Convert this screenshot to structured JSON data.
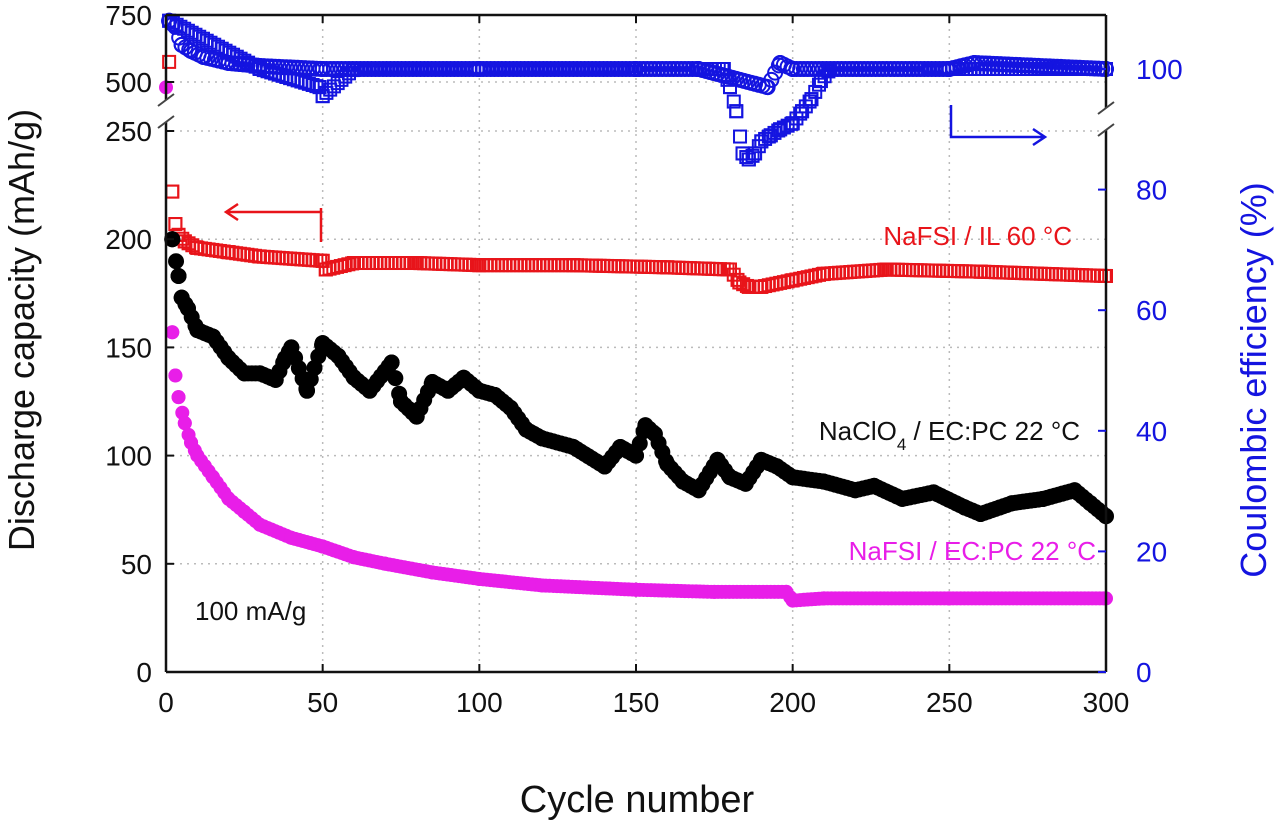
{
  "chart_data": {
    "type": "scatter",
    "xlabel": "Cycle number",
    "ylabel_left": "Discharge capacity (mAh/g)",
    "ylabel_right": "Coulombic efficiency (%)",
    "xlim": [
      0,
      300
    ],
    "ylim_left_lower": [
      0,
      250
    ],
    "ylim_left_upper": [
      250,
      750
    ],
    "ylim_right": [
      0,
      110
    ],
    "x_ticks": [
      "0",
      "50",
      "100",
      "150",
      "200",
      "250",
      "300"
    ],
    "y_left_ticks": [
      "0",
      "50",
      "100",
      "150",
      "200",
      "250",
      "500",
      "750"
    ],
    "y_right_ticks": [
      "0",
      "20",
      "40",
      "60",
      "80",
      "100"
    ],
    "grid": true,
    "annotations": {
      "rate": "100 mA/g",
      "label_il": "NaFSI / IL 60 °C",
      "label_clo4_main": "NaClO",
      "label_clo4_sub": "4",
      "label_clo4_rest": " / EC:PC 22 °C",
      "label_fsi_ecpc": "NaFSI / EC:PC 22 °C"
    },
    "colors": {
      "il": "#e8141a",
      "clo4": "#000000",
      "fsi": "#e81ee8",
      "ce": "#1414e0"
    },
    "series": [
      {
        "name": "NaFSI / IL 60 °C discharge",
        "axis": "left",
        "marker": "open-square",
        "color": "#e8141a",
        "points": [
          [
            1,
            575
          ],
          [
            2,
            222
          ],
          [
            3,
            207
          ],
          [
            4,
            202
          ],
          [
            6,
            199
          ],
          [
            10,
            196
          ],
          [
            20,
            194
          ],
          [
            30,
            192
          ],
          [
            50,
            190
          ],
          [
            51,
            186
          ],
          [
            60,
            189
          ],
          [
            80,
            189
          ],
          [
            100,
            188
          ],
          [
            130,
            188
          ],
          [
            160,
            187
          ],
          [
            180,
            186
          ],
          [
            183,
            180
          ],
          [
            186,
            178
          ],
          [
            190,
            178
          ],
          [
            200,
            181
          ],
          [
            210,
            184
          ],
          [
            230,
            186
          ],
          [
            260,
            185
          ],
          [
            300,
            183
          ]
        ]
      },
      {
        "name": "NaClO4 / EC:PC 22 °C discharge",
        "axis": "left",
        "marker": "filled-circle",
        "color": "#000000",
        "points": [
          [
            2,
            200
          ],
          [
            4,
            183
          ],
          [
            5,
            173
          ],
          [
            7,
            168
          ],
          [
            10,
            158
          ],
          [
            15,
            155
          ],
          [
            20,
            145
          ],
          [
            25,
            138
          ],
          [
            30,
            138
          ],
          [
            35,
            135
          ],
          [
            38,
            145
          ],
          [
            40,
            150
          ],
          [
            45,
            130
          ],
          [
            50,
            152
          ],
          [
            55,
            146
          ],
          [
            60,
            136
          ],
          [
            65,
            130
          ],
          [
            72,
            143
          ],
          [
            75,
            125
          ],
          [
            80,
            118
          ],
          [
            85,
            134
          ],
          [
            90,
            130
          ],
          [
            95,
            136
          ],
          [
            100,
            130
          ],
          [
            105,
            128
          ],
          [
            110,
            122
          ],
          [
            115,
            112
          ],
          [
            120,
            108
          ],
          [
            130,
            104
          ],
          [
            140,
            95
          ],
          [
            145,
            104
          ],
          [
            150,
            100
          ],
          [
            153,
            114
          ],
          [
            156,
            110
          ],
          [
            160,
            96
          ],
          [
            165,
            88
          ],
          [
            170,
            84
          ],
          [
            176,
            98
          ],
          [
            180,
            90
          ],
          [
            185,
            87
          ],
          [
            190,
            98
          ],
          [
            195,
            95
          ],
          [
            200,
            90
          ],
          [
            210,
            88
          ],
          [
            220,
            84
          ],
          [
            226,
            86
          ],
          [
            235,
            80
          ],
          [
            245,
            83
          ],
          [
            255,
            76
          ],
          [
            260,
            73
          ],
          [
            270,
            78
          ],
          [
            280,
            80
          ],
          [
            290,
            84
          ],
          [
            295,
            78
          ],
          [
            300,
            72
          ]
        ]
      },
      {
        "name": "NaFSI / EC:PC 22 °C discharge",
        "axis": "left",
        "marker": "filled-circle",
        "color": "#e81ee8",
        "points": [
          [
            0,
            480
          ],
          [
            2,
            157
          ],
          [
            3,
            137
          ],
          [
            4,
            127
          ],
          [
            6,
            115
          ],
          [
            8,
            106
          ],
          [
            10,
            100
          ],
          [
            15,
            90
          ],
          [
            20,
            80
          ],
          [
            25,
            74
          ],
          [
            30,
            68
          ],
          [
            40,
            62
          ],
          [
            50,
            58
          ],
          [
            60,
            53
          ],
          [
            70,
            50
          ],
          [
            85,
            46
          ],
          [
            100,
            43
          ],
          [
            120,
            40
          ],
          [
            150,
            38
          ],
          [
            175,
            37
          ],
          [
            198,
            37
          ],
          [
            200,
            33
          ],
          [
            210,
            34
          ],
          [
            250,
            34
          ],
          [
            300,
            34
          ]
        ]
      },
      {
        "name": "Coulombic efficiency (circles)",
        "axis": "right",
        "marker": "open-circle",
        "color": "#1414e0",
        "points": [
          [
            1,
            108
          ],
          [
            3,
            107
          ],
          [
            5,
            104
          ],
          [
            8,
            103
          ],
          [
            12,
            102
          ],
          [
            20,
            101
          ],
          [
            30,
            100.5
          ],
          [
            50,
            100
          ],
          [
            100,
            100
          ],
          [
            150,
            100
          ],
          [
            170,
            100
          ],
          [
            192,
            97
          ],
          [
            196,
            101
          ],
          [
            200,
            100
          ],
          [
            250,
            100
          ],
          [
            258,
            101
          ],
          [
            300,
            100
          ]
        ]
      },
      {
        "name": "Coulombic efficiency (squares)",
        "axis": "right",
        "marker": "open-square",
        "color": "#1414e0",
        "points": [
          [
            1,
            108
          ],
          [
            30,
            100
          ],
          [
            49,
            97
          ],
          [
            50,
            95.5
          ],
          [
            60,
            100
          ],
          [
            178,
            100
          ],
          [
            180,
            97
          ],
          [
            182,
            93
          ],
          [
            184,
            86
          ],
          [
            186,
            85
          ],
          [
            188,
            86
          ],
          [
            190,
            88
          ],
          [
            193,
            89
          ],
          [
            196,
            90
          ],
          [
            200,
            91
          ],
          [
            203,
            93
          ],
          [
            206,
            95
          ],
          [
            209,
            98
          ],
          [
            212,
            100
          ],
          [
            240,
            100
          ],
          [
            300,
            100
          ]
        ]
      }
    ]
  }
}
